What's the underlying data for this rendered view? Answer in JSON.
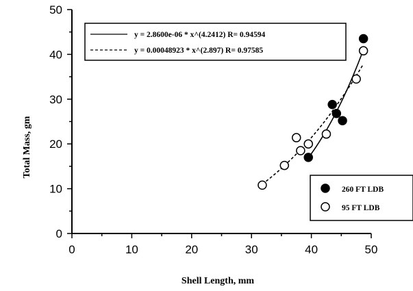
{
  "chart_data": {
    "type": "scatter",
    "title": "",
    "xlabel": "Shell Length, mm",
    "ylabel": "Total Mass, gm",
    "xlim": [
      0,
      50
    ],
    "ylim": [
      0,
      50
    ],
    "xticks": [
      "0",
      "10",
      "20",
      "30",
      "40",
      "50"
    ],
    "yticks": [
      "0",
      "10",
      "20",
      "30",
      "40",
      "50"
    ],
    "grid": false,
    "legend_position": "bottom-right",
    "series": [
      {
        "name": "260 FT LDB",
        "marker": "filled-circle",
        "x": [
          39.5,
          43.5,
          44.2,
          45.2,
          48.7
        ],
        "y": [
          17.0,
          28.8,
          26.8,
          25.2,
          43.5
        ]
      },
      {
        "name": "95 FT LDB",
        "marker": "open-circle",
        "x": [
          31.8,
          35.5,
          37.5,
          38.2,
          39.5,
          42.5,
          47.5,
          48.7
        ],
        "y": [
          10.8,
          15.2,
          21.4,
          18.5,
          20.0,
          22.2,
          34.5,
          40.8
        ]
      }
    ],
    "fits": [
      {
        "label": "y = 2.8600e-06 * x^(4.2412) R= 0.94594",
        "style": "solid",
        "coef": 2.86e-06,
        "exponent": 4.2412,
        "x_range": [
          39.5,
          48.7
        ]
      },
      {
        "label": "y = 0.00048923 * x^(2.897) R= 0.97585",
        "style": "dashed",
        "coef": 0.00048923,
        "exponent": 2.897,
        "x_range": [
          31.8,
          48.7
        ]
      }
    ]
  }
}
